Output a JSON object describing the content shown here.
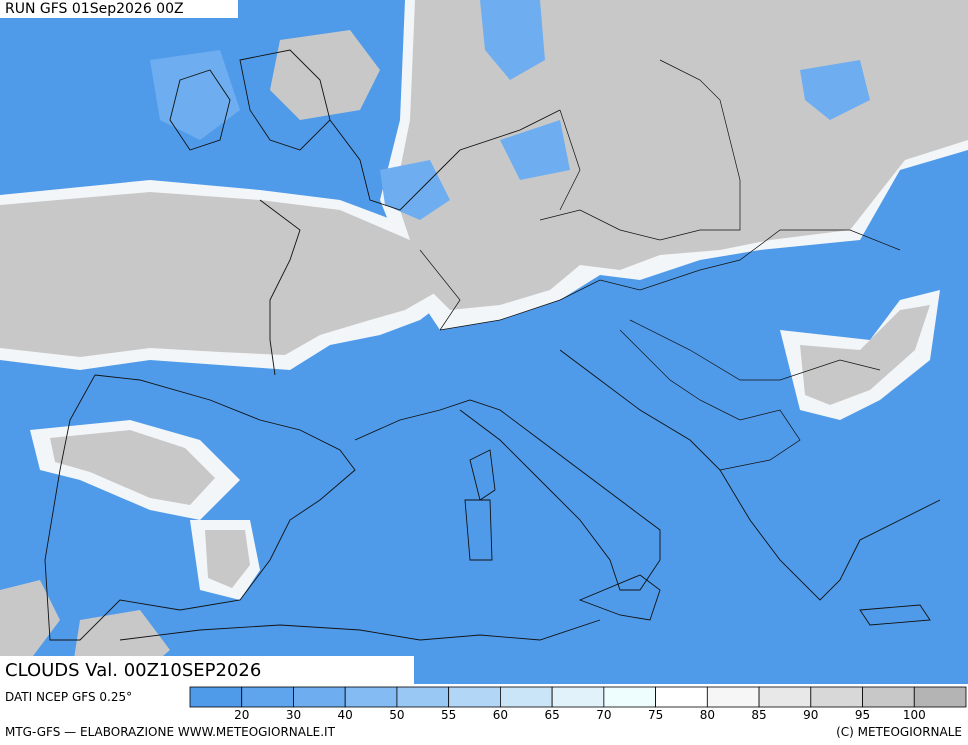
{
  "header": {
    "run": "RUN GFS 01Sep2026 00Z"
  },
  "title": "CLOUDS Val. 00Z10SEP2026",
  "source": "DATI NCEP GFS 0.25°",
  "colorbar": {
    "ticks": [
      20,
      30,
      40,
      50,
      55,
      60,
      65,
      70,
      75,
      80,
      85,
      90,
      95,
      100
    ],
    "colors": [
      "#4f9bea",
      "#5ea5ee",
      "#6eaef0",
      "#84bbf2",
      "#9ac8f4",
      "#b2d6f6",
      "#cae4f8",
      "#e2f2fa",
      "#eefeff",
      "#ffffff",
      "#f6f6f6",
      "#e8e8e8",
      "#d8d8d8",
      "#c8c8c8",
      "#b4b4b4"
    ]
  },
  "footer": {
    "left": "MTG-GFS — ELABORAZIONE WWW.METEOGIORNALE.IT",
    "right": "(C) METEOGIORNALE"
  }
}
